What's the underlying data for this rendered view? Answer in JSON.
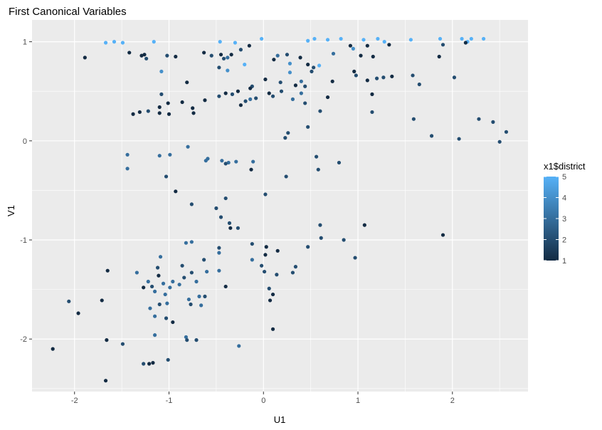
{
  "chart_data": {
    "type": "scatter",
    "title": "First Canonical Variables",
    "xlabel": "U1",
    "ylabel": "V1",
    "xlim": [
      -2.45,
      2.8
    ],
    "ylim": [
      -2.53,
      1.22
    ],
    "x_ticks": [
      -2,
      -1,
      0,
      1,
      2
    ],
    "y_ticks": [
      -2,
      -1,
      0,
      1
    ],
    "x_tick_labels": [
      "-2",
      "-1",
      "0",
      "1",
      "2"
    ],
    "y_tick_labels": [
      "-2",
      "-1",
      "0",
      "1"
    ],
    "grid": true,
    "legend": {
      "title": "x1$district",
      "placement": "right",
      "range": [
        1,
        5
      ],
      "ticks": [
        1,
        2,
        3,
        4,
        5
      ],
      "tick_labels": [
        "1",
        "2",
        "3",
        "4",
        "5"
      ],
      "color_low": "#132b43",
      "color_high": "#56b1f7"
    },
    "points": [
      {
        "x": -1.67,
        "y": 0.99,
        "c": 5
      },
      {
        "x": -1.58,
        "y": 1.0,
        "c": 5
      },
      {
        "x": -1.49,
        "y": 0.99,
        "c": 5
      },
      {
        "x": -1.16,
        "y": 1.0,
        "c": 5
      },
      {
        "x": -0.46,
        "y": 1.0,
        "c": 5
      },
      {
        "x": -0.3,
        "y": 0.99,
        "c": 5
      },
      {
        "x": -0.02,
        "y": 1.03,
        "c": 5
      },
      {
        "x": 0.47,
        "y": 1.01,
        "c": 5
      },
      {
        "x": 0.54,
        "y": 1.03,
        "c": 5
      },
      {
        "x": 0.68,
        "y": 1.02,
        "c": 5
      },
      {
        "x": 0.82,
        "y": 1.03,
        "c": 5
      },
      {
        "x": 1.06,
        "y": 1.02,
        "c": 5
      },
      {
        "x": 1.21,
        "y": 1.03,
        "c": 5
      },
      {
        "x": 1.28,
        "y": 1.0,
        "c": 5
      },
      {
        "x": 1.56,
        "y": 1.02,
        "c": 5
      },
      {
        "x": 1.87,
        "y": 1.03,
        "c": 5
      },
      {
        "x": 2.1,
        "y": 1.03,
        "c": 5
      },
      {
        "x": 2.2,
        "y": 1.03,
        "c": 5
      },
      {
        "x": 2.33,
        "y": 1.03,
        "c": 5
      },
      {
        "x": 2.16,
        "y": 1.0,
        "c": 5
      },
      {
        "x": -1.08,
        "y": 0.7,
        "c": 4
      },
      {
        "x": -0.38,
        "y": 0.71,
        "c": 4
      },
      {
        "x": -0.2,
        "y": 0.77,
        "c": 5
      },
      {
        "x": 0.28,
        "y": 0.78,
        "c": 4
      },
      {
        "x": 0.28,
        "y": 0.69,
        "c": 4
      },
      {
        "x": 0.59,
        "y": 0.76,
        "c": 5
      },
      {
        "x": 0.95,
        "y": 0.93,
        "c": 4
      },
      {
        "x": -1.89,
        "y": 0.84,
        "c": 1
      },
      {
        "x": -1.42,
        "y": 0.89,
        "c": 1
      },
      {
        "x": -1.29,
        "y": 0.86,
        "c": 1
      },
      {
        "x": -1.24,
        "y": 0.83,
        "c": 2
      },
      {
        "x": -1.26,
        "y": 0.87,
        "c": 1
      },
      {
        "x": -1.02,
        "y": 0.86,
        "c": 2
      },
      {
        "x": -0.93,
        "y": 0.85,
        "c": 1
      },
      {
        "x": -0.63,
        "y": 0.89,
        "c": 1
      },
      {
        "x": -0.55,
        "y": 0.86,
        "c": 2
      },
      {
        "x": -0.45,
        "y": 0.87,
        "c": 1
      },
      {
        "x": -0.42,
        "y": 0.83,
        "c": 2
      },
      {
        "x": -0.38,
        "y": 0.84,
        "c": 3
      },
      {
        "x": -0.34,
        "y": 0.87,
        "c": 1
      },
      {
        "x": -0.24,
        "y": 0.92,
        "c": 2
      },
      {
        "x": -0.15,
        "y": 0.96,
        "c": 1
      },
      {
        "x": 0.11,
        "y": 0.82,
        "c": 1
      },
      {
        "x": 0.15,
        "y": 0.86,
        "c": 3
      },
      {
        "x": 0.25,
        "y": 0.87,
        "c": 2
      },
      {
        "x": 0.39,
        "y": 0.84,
        "c": 1
      },
      {
        "x": 0.47,
        "y": 0.77,
        "c": 1
      },
      {
        "x": 0.53,
        "y": 0.74,
        "c": 2
      },
      {
        "x": 0.74,
        "y": 0.88,
        "c": 3
      },
      {
        "x": 0.92,
        "y": 0.96,
        "c": 1
      },
      {
        "x": 1.03,
        "y": 0.86,
        "c": 1
      },
      {
        "x": 1.1,
        "y": 0.96,
        "c": 1
      },
      {
        "x": 1.16,
        "y": 0.85,
        "c": 1
      },
      {
        "x": 1.33,
        "y": 0.97,
        "c": 1
      },
      {
        "x": 1.86,
        "y": 0.85,
        "c": 1
      },
      {
        "x": 1.9,
        "y": 0.97,
        "c": 2
      },
      {
        "x": 2.14,
        "y": 0.99,
        "c": 1
      },
      {
        "x": -0.47,
        "y": 0.74,
        "c": 2
      },
      {
        "x": -0.12,
        "y": 0.55,
        "c": 2
      },
      {
        "x": 0.02,
        "y": 0.62,
        "c": 1
      },
      {
        "x": 0.18,
        "y": 0.59,
        "c": 2
      },
      {
        "x": 0.34,
        "y": 0.56,
        "c": 1
      },
      {
        "x": 0.4,
        "y": 0.6,
        "c": 3
      },
      {
        "x": 0.51,
        "y": 0.7,
        "c": 2
      },
      {
        "x": 0.73,
        "y": 0.6,
        "c": 1
      },
      {
        "x": 0.96,
        "y": 0.7,
        "c": 1
      },
      {
        "x": 0.98,
        "y": 0.66,
        "c": 2
      },
      {
        "x": 1.1,
        "y": 0.61,
        "c": 1
      },
      {
        "x": 1.2,
        "y": 0.63,
        "c": 2
      },
      {
        "x": 1.27,
        "y": 0.64,
        "c": 2
      },
      {
        "x": 1.36,
        "y": 0.65,
        "c": 1
      },
      {
        "x": 1.58,
        "y": 0.66,
        "c": 2
      },
      {
        "x": 1.65,
        "y": 0.57,
        "c": 2
      },
      {
        "x": 2.02,
        "y": 0.64,
        "c": 2
      },
      {
        "x": -1.08,
        "y": 0.47,
        "c": 2
      },
      {
        "x": -0.81,
        "y": 0.59,
        "c": 1
      },
      {
        "x": -0.47,
        "y": 0.45,
        "c": 2
      },
      {
        "x": -0.4,
        "y": 0.48,
        "c": 1
      },
      {
        "x": -0.33,
        "y": 0.47,
        "c": 2
      },
      {
        "x": -0.27,
        "y": 0.5,
        "c": 1
      },
      {
        "x": -0.14,
        "y": 0.53,
        "c": 1
      },
      {
        "x": -0.08,
        "y": 0.43,
        "c": 2
      },
      {
        "x": 0.06,
        "y": 0.48,
        "c": 1
      },
      {
        "x": 0.19,
        "y": 0.5,
        "c": 2
      },
      {
        "x": 0.4,
        "y": 0.48,
        "c": 3
      },
      {
        "x": 0.44,
        "y": 0.55,
        "c": 2
      },
      {
        "x": 0.68,
        "y": 0.44,
        "c": 1
      },
      {
        "x": 1.15,
        "y": 0.47,
        "c": 1
      },
      {
        "x": -1.1,
        "y": 0.34,
        "c": 1
      },
      {
        "x": -1.01,
        "y": 0.38,
        "c": 1
      },
      {
        "x": -0.86,
        "y": 0.39,
        "c": 1
      },
      {
        "x": -0.75,
        "y": 0.33,
        "c": 1
      },
      {
        "x": -0.62,
        "y": 0.41,
        "c": 1
      },
      {
        "x": -0.24,
        "y": 0.36,
        "c": 1
      },
      {
        "x": -0.19,
        "y": 0.4,
        "c": 2
      },
      {
        "x": -0.14,
        "y": 0.42,
        "c": 3
      },
      {
        "x": 0.1,
        "y": 0.45,
        "c": 2
      },
      {
        "x": 0.31,
        "y": 0.42,
        "c": 3
      },
      {
        "x": 0.44,
        "y": 0.38,
        "c": 2
      },
      {
        "x": -1.38,
        "y": 0.27,
        "c": 1
      },
      {
        "x": -1.31,
        "y": 0.29,
        "c": 1
      },
      {
        "x": -1.22,
        "y": 0.3,
        "c": 2
      },
      {
        "x": -1.1,
        "y": 0.28,
        "c": 1
      },
      {
        "x": -1.0,
        "y": 0.27,
        "c": 1
      },
      {
        "x": -0.74,
        "y": 0.28,
        "c": 1
      },
      {
        "x": 0.6,
        "y": 0.3,
        "c": 2
      },
      {
        "x": 1.15,
        "y": 0.29,
        "c": 2
      },
      {
        "x": 1.59,
        "y": 0.22,
        "c": 2
      },
      {
        "x": 2.28,
        "y": 0.22,
        "c": 2
      },
      {
        "x": 2.43,
        "y": 0.19,
        "c": 2
      },
      {
        "x": 0.47,
        "y": 0.14,
        "c": 2
      },
      {
        "x": 0.26,
        "y": 0.08,
        "c": 2
      },
      {
        "x": 0.23,
        "y": 0.03,
        "c": 2
      },
      {
        "x": 1.78,
        "y": 0.05,
        "c": 2
      },
      {
        "x": 2.07,
        "y": 0.02,
        "c": 2
      },
      {
        "x": 2.5,
        "y": -0.01,
        "c": 2
      },
      {
        "x": 2.57,
        "y": 0.09,
        "c": 2
      },
      {
        "x": -0.99,
        "y": -0.14,
        "c": 3
      },
      {
        "x": -1.1,
        "y": -0.15,
        "c": 3
      },
      {
        "x": -0.8,
        "y": -0.06,
        "c": 3
      },
      {
        "x": -1.44,
        "y": -0.14,
        "c": 3
      },
      {
        "x": -1.44,
        "y": -0.28,
        "c": 3
      },
      {
        "x": -0.61,
        "y": -0.2,
        "c": 3
      },
      {
        "x": -0.59,
        "y": -0.18,
        "c": 3
      },
      {
        "x": -0.44,
        "y": -0.2,
        "c": 3
      },
      {
        "x": -0.37,
        "y": -0.22,
        "c": 3
      },
      {
        "x": -0.29,
        "y": -0.21,
        "c": 3
      },
      {
        "x": -0.11,
        "y": -0.21,
        "c": 3
      },
      {
        "x": -0.13,
        "y": -0.29,
        "c": 1
      },
      {
        "x": -0.4,
        "y": -0.23,
        "c": 2
      },
      {
        "x": 0.56,
        "y": -0.16,
        "c": 2
      },
      {
        "x": 0.8,
        "y": -0.22,
        "c": 2
      },
      {
        "x": 0.58,
        "y": -0.29,
        "c": 2
      },
      {
        "x": 0.24,
        "y": -0.36,
        "c": 2
      },
      {
        "x": -1.03,
        "y": -0.36,
        "c": 2
      },
      {
        "x": -0.93,
        "y": -0.51,
        "c": 1
      },
      {
        "x": 0.02,
        "y": -0.54,
        "c": 2
      },
      {
        "x": -0.4,
        "y": -0.58,
        "c": 2
      },
      {
        "x": -0.76,
        "y": -0.64,
        "c": 2
      },
      {
        "x": -0.5,
        "y": -0.68,
        "c": 2
      },
      {
        "x": -0.45,
        "y": -0.77,
        "c": 2
      },
      {
        "x": -0.36,
        "y": -0.83,
        "c": 2
      },
      {
        "x": -0.35,
        "y": -0.88,
        "c": 1
      },
      {
        "x": -0.27,
        "y": -0.88,
        "c": 2
      },
      {
        "x": 0.6,
        "y": -0.85,
        "c": 2
      },
      {
        "x": 1.07,
        "y": -0.85,
        "c": 1
      },
      {
        "x": 1.9,
        "y": -0.95,
        "c": 1
      },
      {
        "x": 0.61,
        "y": -0.98,
        "c": 2
      },
      {
        "x": 0.85,
        "y": -1.0,
        "c": 2
      },
      {
        "x": -0.76,
        "y": -1.02,
        "c": 3
      },
      {
        "x": -0.82,
        "y": -1.03,
        "c": 3
      },
      {
        "x": -0.12,
        "y": -1.04,
        "c": 2
      },
      {
        "x": 0.03,
        "y": -1.07,
        "c": 1
      },
      {
        "x": 0.47,
        "y": -1.07,
        "c": 2
      },
      {
        "x": -0.47,
        "y": -1.08,
        "c": 2
      },
      {
        "x": -0.47,
        "y": -1.13,
        "c": 3
      },
      {
        "x": 0.15,
        "y": -1.11,
        "c": 1
      },
      {
        "x": 0.02,
        "y": -1.15,
        "c": 1
      },
      {
        "x": 0.97,
        "y": -1.18,
        "c": 2
      },
      {
        "x": -1.09,
        "y": -1.17,
        "c": 3
      },
      {
        "x": -0.63,
        "y": -1.2,
        "c": 2
      },
      {
        "x": -0.12,
        "y": -1.2,
        "c": 3
      },
      {
        "x": -0.86,
        "y": -1.26,
        "c": 2
      },
      {
        "x": -0.02,
        "y": -1.26,
        "c": 2
      },
      {
        "x": 0.34,
        "y": -1.27,
        "c": 2
      },
      {
        "x": -1.65,
        "y": -1.31,
        "c": 1
      },
      {
        "x": -1.12,
        "y": -1.28,
        "c": 2
      },
      {
        "x": -0.6,
        "y": -1.32,
        "c": 3
      },
      {
        "x": -1.34,
        "y": -1.33,
        "c": 3
      },
      {
        "x": -0.47,
        "y": -1.31,
        "c": 3
      },
      {
        "x": -0.76,
        "y": -1.33,
        "c": 2
      },
      {
        "x": 0.01,
        "y": -1.32,
        "c": 2
      },
      {
        "x": 0.14,
        "y": -1.35,
        "c": 2
      },
      {
        "x": 0.31,
        "y": -1.33,
        "c": 2
      },
      {
        "x": -1.11,
        "y": -1.36,
        "c": 1
      },
      {
        "x": -0.84,
        "y": -1.38,
        "c": 2
      },
      {
        "x": -0.71,
        "y": -1.42,
        "c": 3
      },
      {
        "x": -0.96,
        "y": -1.42,
        "c": 3
      },
      {
        "x": -1.22,
        "y": -1.42,
        "c": 3
      },
      {
        "x": -1.06,
        "y": -1.44,
        "c": 3
      },
      {
        "x": -0.4,
        "y": -1.47,
        "c": 1
      },
      {
        "x": -1.27,
        "y": -1.48,
        "c": 1
      },
      {
        "x": -1.18,
        "y": -1.47,
        "c": 2
      },
      {
        "x": -0.99,
        "y": -1.48,
        "c": 3
      },
      {
        "x": -0.89,
        "y": -1.45,
        "c": 3
      },
      {
        "x": 0.06,
        "y": -1.49,
        "c": 2
      },
      {
        "x": -1.15,
        "y": -1.52,
        "c": 3
      },
      {
        "x": -1.04,
        "y": -1.55,
        "c": 3
      },
      {
        "x": -0.68,
        "y": -1.57,
        "c": 3
      },
      {
        "x": -0.62,
        "y": -1.57,
        "c": 2
      },
      {
        "x": -0.79,
        "y": -1.6,
        "c": 3
      },
      {
        "x": 0.1,
        "y": -1.55,
        "c": 1
      },
      {
        "x": -2.06,
        "y": -1.62,
        "c": 2
      },
      {
        "x": -1.71,
        "y": -1.61,
        "c": 1
      },
      {
        "x": 0.07,
        "y": -1.61,
        "c": 1
      },
      {
        "x": -1.1,
        "y": -1.65,
        "c": 2
      },
      {
        "x": -1.02,
        "y": -1.64,
        "c": 3
      },
      {
        "x": -0.77,
        "y": -1.65,
        "c": 2
      },
      {
        "x": -0.66,
        "y": -1.66,
        "c": 3
      },
      {
        "x": -1.2,
        "y": -1.69,
        "c": 3
      },
      {
        "x": -1.96,
        "y": -1.74,
        "c": 1
      },
      {
        "x": -1.15,
        "y": -1.77,
        "c": 3
      },
      {
        "x": -1.03,
        "y": -1.79,
        "c": 2
      },
      {
        "x": -0.96,
        "y": -1.83,
        "c": 1
      },
      {
        "x": 0.1,
        "y": -1.9,
        "c": 1
      },
      {
        "x": -1.15,
        "y": -1.96,
        "c": 3
      },
      {
        "x": -0.82,
        "y": -1.98,
        "c": 3
      },
      {
        "x": -1.66,
        "y": -2.01,
        "c": 1
      },
      {
        "x": -0.81,
        "y": -2.01,
        "c": 2
      },
      {
        "x": -0.71,
        "y": -2.01,
        "c": 2
      },
      {
        "x": -1.49,
        "y": -2.05,
        "c": 2
      },
      {
        "x": -0.26,
        "y": -2.07,
        "c": 3
      },
      {
        "x": -2.23,
        "y": -2.1,
        "c": 1
      },
      {
        "x": -1.01,
        "y": -2.21,
        "c": 2
      },
      {
        "x": -1.27,
        "y": -2.25,
        "c": 2
      },
      {
        "x": -1.21,
        "y": -2.25,
        "c": 1
      },
      {
        "x": -1.17,
        "y": -2.24,
        "c": 1
      },
      {
        "x": -1.67,
        "y": -2.42,
        "c": 1
      }
    ]
  }
}
